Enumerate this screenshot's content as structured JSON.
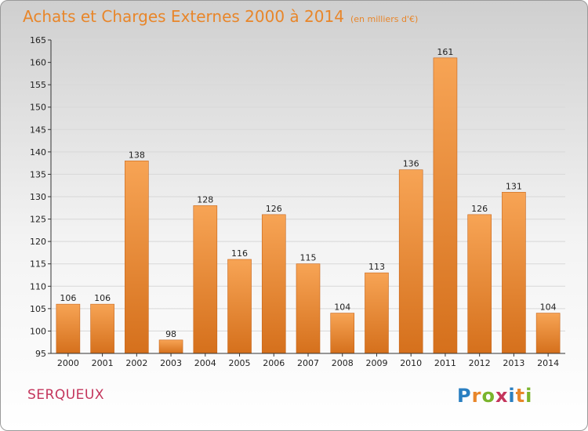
{
  "header": {
    "title": "Achats et Charges Externes 2000 à 2014",
    "subtitle": "(en milliers d'€)"
  },
  "footer": {
    "location": "SERQUEUX",
    "logo_text": "Proxiti"
  },
  "colors": {
    "title": "#e8862a",
    "location": "#c4355c",
    "bar_top": "#f7a455",
    "bar_bottom": "#d5701c"
  },
  "chart_data": {
    "type": "bar",
    "title": "Achats et Charges Externes 2000 à 2014",
    "subtitle": "(en milliers d'€)",
    "xlabel": "",
    "ylabel": "",
    "categories": [
      "2000",
      "2001",
      "2002",
      "2003",
      "2004",
      "2005",
      "2006",
      "2007",
      "2008",
      "2009",
      "2010",
      "2011",
      "2012",
      "2013",
      "2014"
    ],
    "values": [
      106,
      106,
      138,
      98,
      128,
      116,
      126,
      115,
      104,
      113,
      136,
      161,
      126,
      131,
      104
    ],
    "ylim": [
      95,
      165
    ],
    "yticks": [
      95,
      100,
      105,
      110,
      115,
      120,
      125,
      130,
      135,
      140,
      145,
      150,
      155,
      160,
      165
    ],
    "grid": true,
    "legend": "none"
  }
}
